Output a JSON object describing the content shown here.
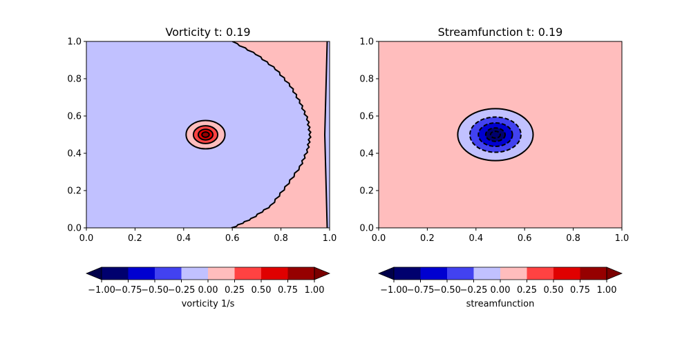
{
  "chart_data": [
    {
      "type": "contour",
      "title": "Vorticity t:  0.19",
      "xlim": [
        0.0,
        1.0
      ],
      "ylim": [
        0.0,
        1.0
      ],
      "xticks": [
        "0.0",
        "0.2",
        "0.4",
        "0.6",
        "0.8",
        "1.0"
      ],
      "yticks": [
        "0.0",
        "0.2",
        "0.4",
        "0.6",
        "0.8",
        "1.0"
      ],
      "regions": {
        "background_level": -0.125,
        "positive_region_boundary": [
          [
            0.6,
            0.0
          ],
          [
            0.68,
            0.05
          ],
          [
            0.76,
            0.12
          ],
          [
            0.82,
            0.22
          ],
          [
            0.88,
            0.33
          ],
          [
            0.91,
            0.42
          ],
          [
            0.92,
            0.5
          ],
          [
            0.91,
            0.58
          ],
          [
            0.88,
            0.67
          ],
          [
            0.84,
            0.76
          ],
          [
            0.78,
            0.85
          ],
          [
            0.7,
            0.93
          ],
          [
            0.6,
            1.0
          ]
        ],
        "positive_region_level": 0.125,
        "right_edge_strip": [
          [
            0.99,
            1.0
          ],
          [
            0.98,
            0.5
          ],
          [
            0.99,
            0.0
          ]
        ],
        "right_edge_strip_level": -0.125,
        "core": {
          "center": [
            0.49,
            0.5
          ],
          "radii": [
            0.08,
            0.05,
            0.03,
            0.015
          ],
          "levels": [
            0.125,
            0.375,
            0.625,
            0.875
          ]
        }
      },
      "colorbar": {
        "label": "vorticity 1/s",
        "ticks": [
          "−1.00",
          "−0.75",
          "−0.50",
          "−0.25",
          "0.00",
          "0.25",
          "0.50",
          "0.75",
          "1.00"
        ]
      }
    },
    {
      "type": "contour",
      "title": "Streamfunction t:  0.19",
      "xlim": [
        0.0,
        1.0
      ],
      "ylim": [
        0.0,
        1.0
      ],
      "xticks": [
        "0.0",
        "0.2",
        "0.4",
        "0.6",
        "0.8",
        "1.0"
      ],
      "yticks": [
        "0.0",
        "0.2",
        "0.4",
        "0.6",
        "0.8",
        "1.0"
      ],
      "regions": {
        "background_level": 0.125,
        "core": {
          "center": [
            0.48,
            0.5
          ],
          "radii": [
            0.155,
            0.105,
            0.07,
            0.04,
            0.02
          ],
          "levels": [
            -0.125,
            -0.375,
            -0.625,
            -0.875,
            -0.875
          ],
          "dashed": [
            false,
            true,
            true,
            true,
            true
          ]
        }
      },
      "colorbar": {
        "label": "streamfunction",
        "ticks": [
          "−1.00",
          "−0.75",
          "−0.50",
          "−0.25",
          "0.00",
          "0.25",
          "0.50",
          "0.75",
          "1.00"
        ]
      }
    }
  ],
  "colormap": {
    "name": "seismic-like",
    "bands": [
      "#00006e",
      "#0000d0",
      "#4242f0",
      "#c1c1ff",
      "#ffbdbd",
      "#ff4242",
      "#e00000",
      "#960000"
    ],
    "extend_low": "#00004a",
    "extend_high": "#7a0000"
  }
}
